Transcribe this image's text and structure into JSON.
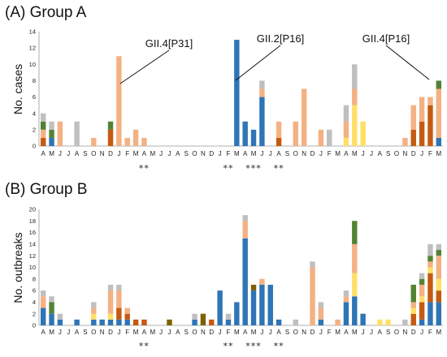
{
  "colors": {
    "blue": "#2e75b6",
    "dark_orange": "#c55a11",
    "yellow": "#ffe066",
    "light_orange": "#f4b183",
    "green": "#548235",
    "gray": "#bfbfbf",
    "olive": "#7f6000"
  },
  "chart_data": [
    {
      "type": "bar",
      "stacked": true,
      "title": "(A) Group A",
      "ylabel": "No. cases",
      "ylim": [
        0,
        14
      ],
      "yticks": [
        0,
        2,
        4,
        6,
        8,
        10,
        12,
        14
      ],
      "grid": false,
      "categories": [
        "A",
        "M",
        "J",
        "J",
        "A",
        "S",
        "O",
        "N",
        "D",
        "J",
        "F",
        "M",
        "A",
        "M",
        "J",
        "J",
        "A",
        "S",
        "O",
        "N",
        "D",
        "J",
        "F",
        "M",
        "A",
        "M",
        "J",
        "J",
        "A",
        "S",
        "O",
        "N",
        "D",
        "J",
        "F",
        "M",
        "A",
        "M",
        "J",
        "J",
        "A",
        "S",
        "O",
        "N",
        "D",
        "J",
        "F",
        "M"
      ],
      "series": [
        {
          "color_key": "blue",
          "values": [
            0,
            1,
            0,
            0,
            0,
            0,
            0,
            0,
            0,
            0,
            0,
            0,
            0,
            0,
            0,
            0,
            0,
            0,
            0,
            0,
            0,
            0,
            0,
            13,
            3,
            2,
            6,
            0,
            0,
            0,
            0,
            0,
            0,
            0,
            0,
            0,
            0,
            0,
            0,
            0,
            0,
            0,
            0,
            0,
            0,
            0,
            0,
            1
          ]
        },
        {
          "color_key": "dark_orange",
          "values": [
            1,
            0,
            0,
            0,
            0,
            0,
            0,
            0,
            2,
            0,
            0,
            0,
            0,
            0,
            0,
            0,
            0,
            0,
            0,
            0,
            0,
            0,
            0,
            0,
            0,
            0,
            0,
            0,
            1,
            0,
            0,
            0,
            0,
            0,
            0,
            0,
            0,
            0,
            0,
            0,
            0,
            0,
            0,
            0,
            2,
            3,
            5,
            0
          ]
        },
        {
          "color_key": "yellow",
          "values": [
            0,
            0,
            0,
            0,
            0,
            0,
            0,
            0,
            0,
            0,
            0,
            0,
            0,
            0,
            0,
            0,
            0,
            0,
            0,
            0,
            0,
            0,
            0,
            0,
            0,
            0,
            0,
            0,
            0,
            0,
            0,
            0,
            0,
            0,
            0,
            0,
            1,
            5,
            3,
            0,
            0,
            0,
            0,
            0,
            0,
            0,
            0,
            0
          ]
        },
        {
          "color_key": "light_orange",
          "values": [
            1,
            0,
            3,
            0,
            0,
            0,
            1,
            0,
            0,
            11,
            1,
            2,
            1,
            0,
            0,
            0,
            0,
            0,
            0,
            0,
            0,
            0,
            0,
            0,
            0,
            0,
            1,
            0,
            2,
            0,
            3,
            7,
            0,
            2,
            0,
            0,
            2,
            2,
            0,
            0,
            0,
            0,
            0,
            1,
            3,
            3,
            1,
            6
          ]
        },
        {
          "color_key": "green",
          "values": [
            1,
            1,
            0,
            0,
            0,
            0,
            0,
            0,
            1,
            0,
            0,
            0,
            0,
            0,
            0,
            0,
            0,
            0,
            0,
            0,
            0,
            0,
            0,
            0,
            0,
            0,
            0,
            0,
            0,
            0,
            0,
            0,
            0,
            0,
            0,
            0,
            0,
            0,
            0,
            0,
            0,
            0,
            0,
            0,
            0,
            0,
            0,
            1
          ]
        },
        {
          "color_key": "gray",
          "values": [
            1,
            1,
            0,
            0,
            3,
            0,
            0,
            0,
            0,
            0,
            0,
            0,
            0,
            0,
            0,
            0,
            0,
            0,
            0,
            0,
            0,
            0,
            0,
            0,
            0,
            0,
            1,
            0,
            0,
            0,
            0,
            0,
            0,
            0,
            2,
            0,
            2,
            3,
            0,
            0,
            0,
            0,
            0,
            0,
            0,
            0,
            0,
            0
          ]
        },
        {
          "color_key": "olive",
          "values": [
            0,
            0,
            0,
            0,
            0,
            0,
            0,
            0,
            0,
            0,
            0,
            0,
            0,
            0,
            0,
            0,
            0,
            0,
            0,
            0,
            0,
            0,
            0,
            0,
            0,
            0,
            0,
            0,
            0,
            0,
            0,
            0,
            0,
            0,
            0,
            0,
            0,
            0,
            0,
            0,
            0,
            0,
            0,
            0,
            0,
            0,
            0,
            0
          ]
        }
      ],
      "annotations": [
        {
          "label": "GII.4[P31]",
          "category_index": 9
        },
        {
          "label": "GII.2[P16]",
          "category_index": 23
        },
        {
          "label": "GII.4[P16]",
          "category_index": 47
        }
      ],
      "significance_marks": [
        {
          "text": "**",
          "category_index": 12
        },
        {
          "text": "**",
          "category_index": 22
        },
        {
          "text": "***",
          "category_index": 25
        },
        {
          "text": "**",
          "category_index": 28
        }
      ]
    },
    {
      "type": "bar",
      "stacked": true,
      "title": "(B) Group B",
      "ylabel": "No. outbreaks",
      "ylim": [
        0,
        20
      ],
      "yticks": [
        0,
        2,
        4,
        6,
        8,
        10,
        12,
        14,
        16,
        18,
        20
      ],
      "grid": false,
      "categories": [
        "A",
        "M",
        "J",
        "J",
        "A",
        "S",
        "O",
        "N",
        "D",
        "J",
        "F",
        "M",
        "A",
        "M",
        "J",
        "J",
        "A",
        "S",
        "O",
        "N",
        "D",
        "J",
        "F",
        "M",
        "A",
        "M",
        "J",
        "J",
        "A",
        "S",
        "O",
        "N",
        "D",
        "J",
        "F",
        "M",
        "A",
        "M",
        "J",
        "J",
        "A",
        "S",
        "O",
        "N",
        "D",
        "J",
        "F",
        "M"
      ],
      "series": [
        {
          "color_key": "blue",
          "values": [
            3,
            2,
            1,
            0,
            1,
            0,
            1,
            1,
            1,
            1,
            1,
            0,
            0,
            0,
            0,
            0,
            0,
            0,
            1,
            0,
            0,
            6,
            1,
            4,
            15,
            6,
            7,
            7,
            1,
            0,
            0,
            0,
            0,
            1,
            0,
            0,
            4,
            5,
            2,
            0,
            0,
            0,
            0,
            0,
            0,
            1,
            4,
            4
          ]
        },
        {
          "color_key": "dark_orange",
          "values": [
            0,
            0,
            0,
            0,
            0,
            0,
            0,
            0,
            0,
            2,
            1,
            1,
            1,
            0,
            0,
            0,
            0,
            0,
            0,
            0,
            1,
            0,
            0,
            0,
            0,
            0,
            0,
            0,
            0,
            0,
            0,
            0,
            0,
            0,
            0,
            0,
            0,
            0,
            0,
            0,
            0,
            0,
            0,
            0,
            2,
            3,
            5,
            2
          ]
        },
        {
          "color_key": "yellow",
          "values": [
            0,
            0,
            0,
            0,
            0,
            0,
            1,
            0,
            1,
            0,
            0,
            0,
            0,
            0,
            0,
            0,
            0,
            0,
            0,
            0,
            0,
            0,
            0,
            0,
            0,
            0,
            0,
            0,
            0,
            0,
            0,
            0,
            0,
            0,
            0,
            0,
            0,
            4,
            0,
            0,
            1,
            1,
            0,
            0,
            1,
            1,
            1,
            2
          ]
        },
        {
          "color_key": "light_orange",
          "values": [
            2,
            0,
            0,
            0,
            0,
            0,
            1,
            0,
            4,
            3,
            1,
            0,
            0,
            0,
            0,
            0,
            0,
            0,
            0,
            0,
            0,
            0,
            0,
            0,
            3,
            0,
            1,
            0,
            0,
            0,
            0,
            0,
            10,
            2,
            0,
            1,
            1,
            5,
            0,
            0,
            0,
            0,
            0,
            0,
            1,
            2,
            1,
            4
          ]
        },
        {
          "color_key": "green",
          "values": [
            0,
            2,
            0,
            0,
            0,
            0,
            0,
            0,
            0,
            0,
            0,
            0,
            0,
            0,
            0,
            0,
            0,
            0,
            0,
            0,
            0,
            0,
            0,
            0,
            0,
            0,
            0,
            0,
            0,
            0,
            0,
            0,
            0,
            0,
            0,
            0,
            0,
            4,
            0,
            0,
            0,
            0,
            0,
            0,
            3,
            1,
            1,
            1
          ]
        },
        {
          "color_key": "gray",
          "values": [
            1,
            1,
            1,
            0,
            0,
            0,
            1,
            0,
            1,
            1,
            0,
            0,
            0,
            0,
            0,
            0,
            0,
            0,
            1,
            0,
            0,
            0,
            1,
            0,
            1,
            0,
            0,
            0,
            0,
            0,
            1,
            0,
            1,
            1,
            0,
            0,
            1,
            0,
            0,
            0,
            0,
            0,
            0,
            1,
            0,
            1,
            2,
            1
          ]
        },
        {
          "color_key": "olive",
          "values": [
            0,
            0,
            0,
            0,
            0,
            0,
            0,
            0,
            0,
            0,
            0,
            0,
            0,
            0,
            0,
            1,
            0,
            0,
            0,
            2,
            0,
            0,
            0,
            0,
            0,
            1,
            0,
            0,
            0,
            0,
            0,
            0,
            0,
            0,
            0,
            0,
            0,
            0,
            0,
            0,
            0,
            0,
            0,
            0,
            0,
            0,
            0,
            0
          ]
        }
      ],
      "significance_marks": [
        {
          "text": "**",
          "category_index": 12
        },
        {
          "text": "**",
          "category_index": 22
        },
        {
          "text": "***",
          "category_index": 25
        },
        {
          "text": "**",
          "category_index": 28
        }
      ]
    }
  ]
}
